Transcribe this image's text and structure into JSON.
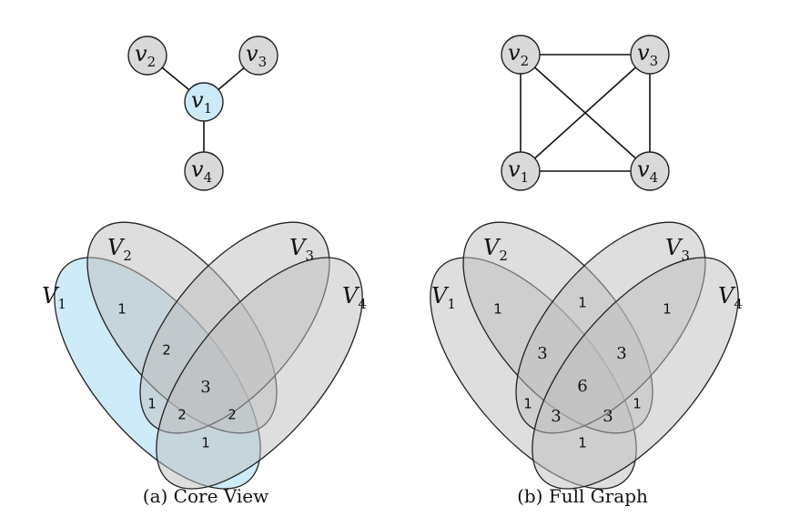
{
  "panels": [
    {
      "caption": "(a) Core View",
      "graph": {
        "nodes": [
          {
            "id": "v1",
            "base": "v",
            "sub": "1",
            "highlight": true
          },
          {
            "id": "v2",
            "base": "v",
            "sub": "2",
            "highlight": false
          },
          {
            "id": "v3",
            "base": "v",
            "sub": "3",
            "highlight": false
          },
          {
            "id": "v4",
            "base": "v",
            "sub": "4",
            "highlight": false
          }
        ],
        "edges": [
          [
            "v1",
            "v2"
          ],
          [
            "v1",
            "v3"
          ],
          [
            "v1",
            "v4"
          ]
        ]
      },
      "sets": [
        {
          "base": "V",
          "sub": "1",
          "color": "#9ed8f4"
        },
        {
          "base": "V",
          "sub": "2",
          "color": "#bdbdbd"
        },
        {
          "base": "V",
          "sub": "3",
          "color": "#bdbdbd"
        },
        {
          "base": "V",
          "sub": "4",
          "color": "#bdbdbd"
        }
      ],
      "region_counts": [
        {
          "region": "V1 V2",
          "value": "1"
        },
        {
          "region": "V1 V2 V3",
          "value": "2"
        },
        {
          "region": "V1 V2 V3 V4",
          "value": "3"
        },
        {
          "region": "V1 V2 V4",
          "value": "1"
        },
        {
          "region": "V1 V3 V4 (left)",
          "value": "2"
        },
        {
          "region": "V1 V2 V3 V4 (right)",
          "value": "2"
        },
        {
          "region": "V1 V4",
          "value": "1"
        }
      ]
    },
    {
      "caption": "(b) Full Graph",
      "graph": {
        "nodes": [
          {
            "id": "v1",
            "base": "v",
            "sub": "1",
            "highlight": false
          },
          {
            "id": "v2",
            "base": "v",
            "sub": "2",
            "highlight": false
          },
          {
            "id": "v3",
            "base": "v",
            "sub": "3",
            "highlight": false
          },
          {
            "id": "v4",
            "base": "v",
            "sub": "4",
            "highlight": false
          }
        ],
        "edges": [
          [
            "v2",
            "v3"
          ],
          [
            "v2",
            "v1"
          ],
          [
            "v2",
            "v4"
          ],
          [
            "v3",
            "v1"
          ],
          [
            "v3",
            "v4"
          ],
          [
            "v1",
            "v4"
          ]
        ]
      },
      "sets": [
        {
          "base": "V",
          "sub": "1",
          "color": "#bdbdbd"
        },
        {
          "base": "V",
          "sub": "2",
          "color": "#bdbdbd"
        },
        {
          "base": "V",
          "sub": "3",
          "color": "#bdbdbd"
        },
        {
          "base": "V",
          "sub": "4",
          "color": "#bdbdbd"
        }
      ],
      "region_counts": [
        {
          "region": "V1 V2",
          "value": "1"
        },
        {
          "region": "V2 V3",
          "value": "1"
        },
        {
          "region": "V3 V4",
          "value": "1"
        },
        {
          "region": "V1 V2 V3",
          "value": "3"
        },
        {
          "region": "V2 V3 V4",
          "value": "3"
        },
        {
          "region": "V1 V2 V3 V4",
          "value": "6"
        },
        {
          "region": "V1 V2 V4",
          "value": "1"
        },
        {
          "region": "V1 V3 V4",
          "value": "1"
        },
        {
          "region": "V1 V2 V3 V4 (left)",
          "value": "3"
        },
        {
          "region": "V1 V2 V3 V4 (right)",
          "value": "3"
        },
        {
          "region": "V1 V4",
          "value": "1"
        }
      ]
    }
  ]
}
